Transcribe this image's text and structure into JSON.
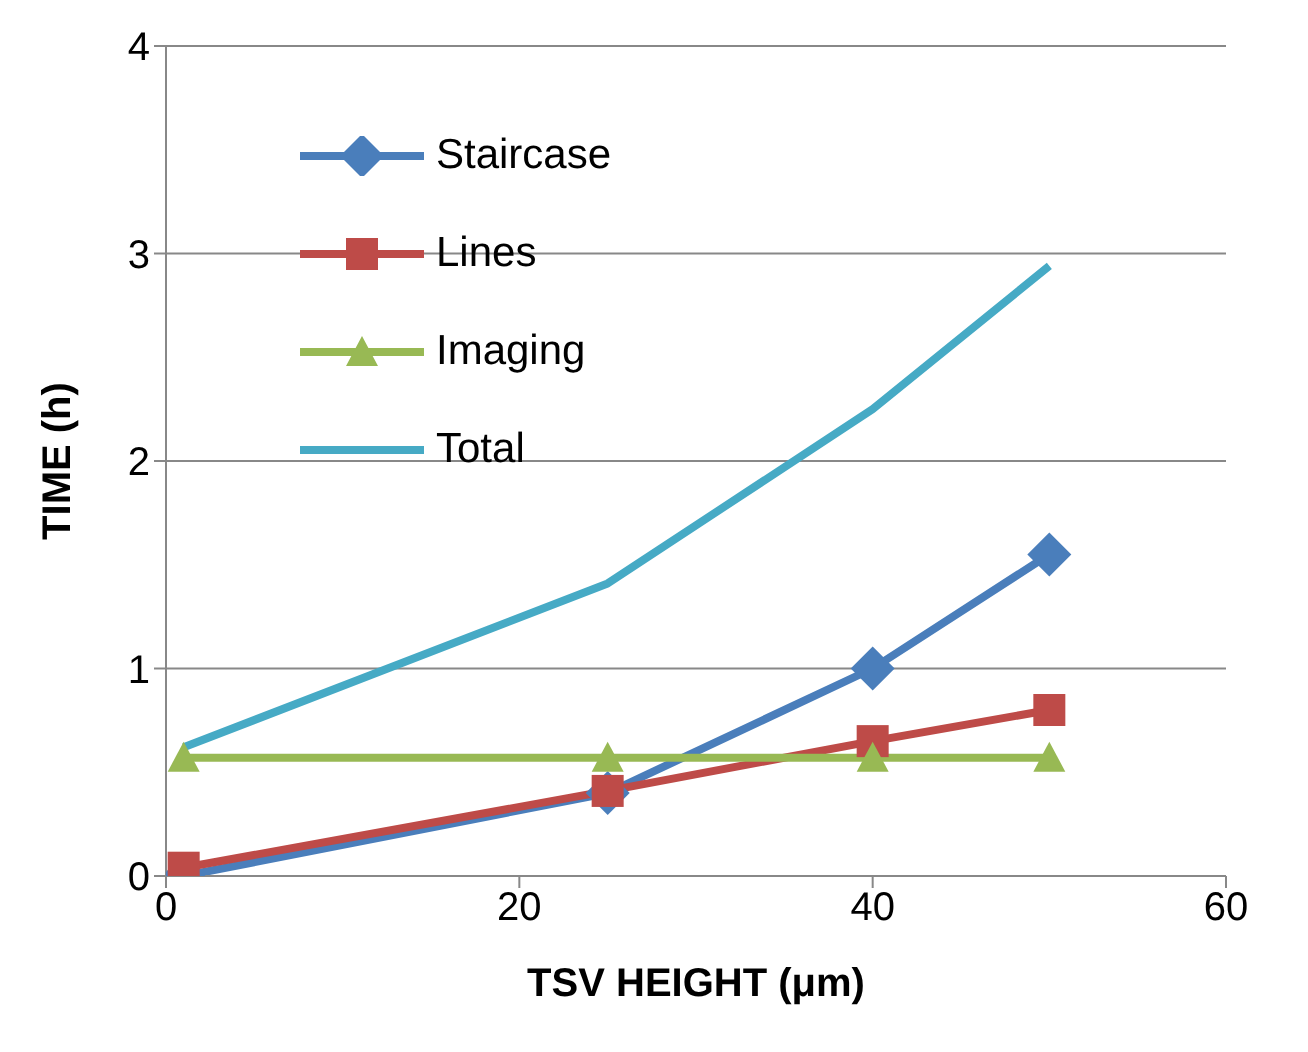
{
  "chart_data": {
    "type": "line",
    "xlabel": "TSV HEIGHT (μm)",
    "ylabel": "TIME (h)",
    "x": [
      1,
      25,
      40,
      50
    ],
    "series": [
      {
        "name": "Staircase",
        "color": "#4a7ebb",
        "marker": "diamond",
        "values": [
          0,
          0.4,
          1.0,
          1.55
        ]
      },
      {
        "name": "Lines",
        "color": "#be4b48",
        "marker": "square",
        "values": [
          0.04,
          0.41,
          0.65,
          0.8
        ]
      },
      {
        "name": "Imaging",
        "color": "#98b954",
        "marker": "triangle",
        "values": [
          0.57,
          0.57,
          0.57,
          0.57
        ]
      },
      {
        "name": "Total",
        "color": "#46aac5",
        "marker": "none",
        "values": [
          0.62,
          1.41,
          2.25,
          2.94
        ]
      }
    ],
    "xlim": [
      0,
      60
    ],
    "xticks": [
      0,
      20,
      40,
      60
    ],
    "ylim": [
      0,
      4
    ],
    "yticks": [
      0,
      1,
      2,
      3,
      4
    ],
    "grid": "y",
    "legend": "top left"
  }
}
